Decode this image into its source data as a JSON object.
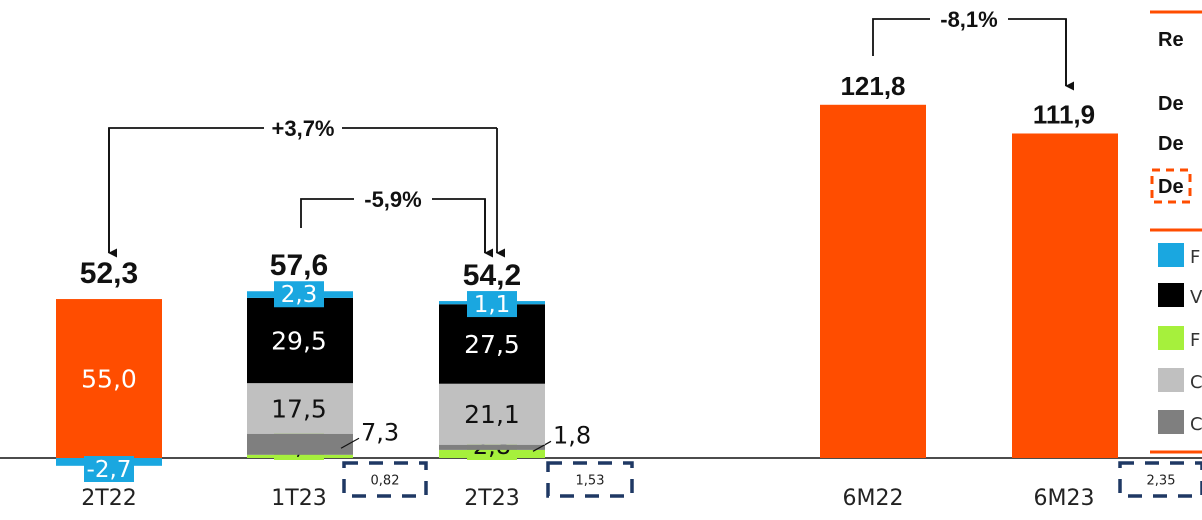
{
  "chart_data": {
    "type": "bar",
    "categories": [
      "2T22",
      "1T23",
      "2T23",
      "6M22",
      "6M23"
    ],
    "totals": [
      "52,3",
      "57,6",
      "54,2",
      "121,8",
      "111,9"
    ],
    "total_values": [
      52.3,
      57.6,
      54.2,
      121.8,
      111.9
    ],
    "quarter_bars": [
      {
        "category": "2T22",
        "segments": [
          {
            "value": 55.0,
            "label": "55,0",
            "color": "#ff4d00"
          },
          {
            "value": -2.7,
            "label": "-2,7",
            "color": "#1aa7e0"
          }
        ]
      },
      {
        "category": "1T23",
        "segments": [
          {
            "value": 1.1,
            "label": "1,1",
            "color": "#a6f03c"
          },
          {
            "value": 7.3,
            "label": "7,3",
            "color": "#7f7f7f"
          },
          {
            "value": 17.5,
            "label": "17,5",
            "color": "#c0c0c0"
          },
          {
            "value": 29.5,
            "label": "29,5",
            "color": "#000000"
          },
          {
            "value": 2.3,
            "label": "2,3",
            "color": "#1aa7e0"
          }
        ],
        "box_value": "0,82"
      },
      {
        "category": "2T23",
        "segments": [
          {
            "value": 2.8,
            "label": "2,8",
            "color": "#a6f03c"
          },
          {
            "value": 1.8,
            "label": "1,8",
            "color": "#7f7f7f"
          },
          {
            "value": 21.1,
            "label": "21,1",
            "color": "#c0c0c0"
          },
          {
            "value": 27.5,
            "label": "27,5",
            "color": "#000000"
          },
          {
            "value": 1.1,
            "label": "1,1",
            "color": "#1aa7e0"
          }
        ],
        "box_value": "1,53"
      }
    ],
    "semester_bars": [
      {
        "category": "6M22",
        "value": 121.8,
        "color": "#ff4d00"
      },
      {
        "category": "6M23",
        "value": 111.9,
        "color": "#ff4d00",
        "box_value": "2,35"
      }
    ],
    "annotations": [
      "+3,7%",
      "-5,9%",
      "-8,1%"
    ],
    "legend_rows": [
      "Re",
      "De",
      "De",
      "De"
    ],
    "colors": {
      "orange": "#ff4d00",
      "blue": "#1aa7e0",
      "black": "#000000",
      "green": "#a6f03c",
      "lightgray": "#c0c0c0",
      "darkgray": "#7f7f7f",
      "navy": "#1f3864"
    },
    "legend_swatch_colors": [
      "#1aa7e0",
      "#000000",
      "#a6f03c",
      "#c0c0c0",
      "#7f7f7f"
    ],
    "legend_swatch_texts": [
      "F",
      "V",
      "F",
      "C",
      "C"
    ],
    "legend_placement": "right (cropped)",
    "grid": false
  }
}
